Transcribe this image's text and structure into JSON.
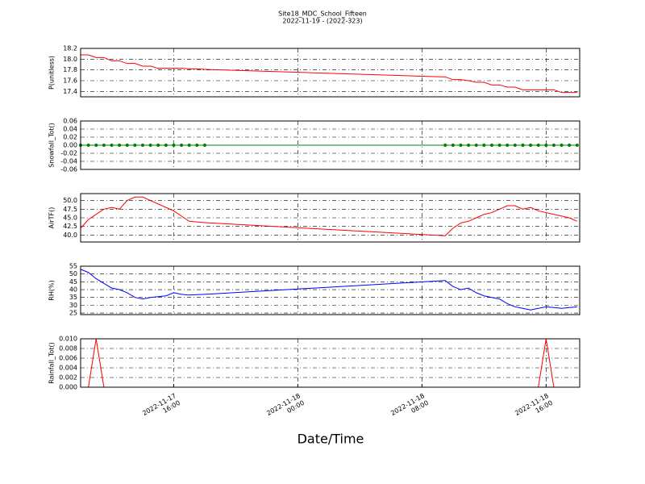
{
  "chart_data": {
    "type": "line",
    "title": "Site18_MDC_School_Fifteen",
    "subtitle": "2022-11-19 - (2022-323)",
    "xlabel": "Date/Time",
    "grid": true,
    "x": [
      "2022-11-17 10:00",
      "2022-11-17 10:30",
      "2022-11-17 11:00",
      "2022-11-17 11:30",
      "2022-11-17 12:00",
      "2022-11-17 12:30",
      "2022-11-17 13:00",
      "2022-11-17 13:30",
      "2022-11-17 14:00",
      "2022-11-17 14:30",
      "2022-11-17 15:00",
      "2022-11-17 15:30",
      "2022-11-17 16:00",
      "2022-11-17 16:30",
      "2022-11-17 17:00",
      "2022-11-17 17:30",
      "2022-11-17 18:00",
      "2022-11-18 09:30",
      "2022-11-18 10:00",
      "2022-11-18 10:30",
      "2022-11-18 11:00",
      "2022-11-18 11:30",
      "2022-11-18 12:00",
      "2022-11-18 12:30",
      "2022-11-18 13:00",
      "2022-11-18 13:30",
      "2022-11-18 14:00",
      "2022-11-18 14:30",
      "2022-11-18 15:00",
      "2022-11-18 15:30",
      "2022-11-18 16:00",
      "2022-11-18 16:30",
      "2022-11-18 17:00",
      "2022-11-18 17:30",
      "2022-11-18 18:00"
    ],
    "xlim": [
      "2022-11-17 10:00",
      "2022-11-18 18:10"
    ],
    "xticks": [
      {
        "value": "2022-11-17 16:00",
        "label": "2022-11-17\n16:00"
      },
      {
        "value": "2022-11-18 00:00",
        "label": "2022-11-18\n00:00"
      },
      {
        "value": "2022-11-18 08:00",
        "label": "2022-11-18\n08:00"
      },
      {
        "value": "2022-11-18 16:00",
        "label": "2022-11-18\n16:00"
      }
    ],
    "panels": [
      {
        "ylabel": "P(unitless)",
        "ylim": [
          17.3,
          18.2
        ],
        "yticks": [
          17.4,
          17.6,
          17.8,
          {
            "value": 18.0,
            "label": "18.0"
          },
          18.2
        ],
        "series": [
          {
            "color": "#ff0000",
            "values": [
              18.08,
              18.08,
              18.03,
              18.03,
              17.97,
              17.97,
              17.92,
              17.92,
              17.87,
              17.87,
              17.83,
              17.83,
              17.83,
              17.83,
              17.82,
              17.82,
              17.81,
              17.67,
              17.62,
              17.62,
              17.6,
              17.57,
              17.57,
              17.52,
              17.52,
              17.48,
              17.48,
              17.43,
              17.43,
              17.43,
              17.43,
              17.43,
              17.38,
              17.38,
              17.38
            ]
          }
        ]
      },
      {
        "ylabel": "Snowfall_Tot()",
        "ylim": [
          -0.06,
          0.06
        ],
        "yticks": [
          -0.06,
          -0.04,
          -0.02,
          {
            "value": 0,
            "label": "0.00"
          },
          0.02,
          0.04,
          0.06
        ],
        "series": [
          {
            "color": "#008000",
            "marker": "o",
            "values": [
              0,
              0,
              0,
              0,
              0,
              0,
              0,
              0,
              0,
              0,
              0,
              0,
              0,
              0,
              0,
              0,
              0,
              0,
              0,
              0,
              0,
              0,
              0,
              0,
              0,
              0,
              0,
              0,
              0,
              0,
              0,
              0,
              0,
              0,
              0
            ]
          }
        ]
      },
      {
        "ylabel": "AirTF()",
        "ylim": [
          38,
          52
        ],
        "yticks": [
          {
            "value": 40,
            "label": "40.0"
          },
          42.5,
          {
            "value": 45,
            "label": "45.0"
          },
          47.5,
          {
            "value": 50,
            "label": "50.0"
          }
        ],
        "series": [
          {
            "color": "#ff0000",
            "values": [
              42,
              44.5,
              46,
              47.5,
              48,
              47.5,
              50,
              51,
              51,
              50,
              49,
              48,
              47,
              45.5,
              44,
              43.8,
              43.6,
              39.8,
              42,
              43.5,
              44,
              45,
              46,
              46.5,
              47.5,
              48.5,
              48.5,
              47.5,
              48,
              47,
              46.5,
              46,
              45.5,
              45,
              44
            ]
          }
        ]
      },
      {
        "ylabel": "RH(%)",
        "ylim": [
          24,
          55
        ],
        "yticks": [
          25,
          30,
          35,
          40,
          45,
          50,
          55
        ],
        "series": [
          {
            "color": "#0000ff",
            "values": [
              53,
              51,
              47,
              44,
              41,
              40,
              38,
              35,
              34,
              35,
              35.5,
              36,
              38,
              37,
              36.5,
              36.8,
              37,
              45.8,
              42,
              40,
              41,
              38,
              36,
              35,
              34,
              31,
              29,
              28,
              27,
              28,
              29,
              28.5,
              28,
              28.5,
              29
            ]
          }
        ]
      },
      {
        "ylabel": "Rainfall_Tot()",
        "ylim": [
          0,
          0.01
        ],
        "yticks": [
          {
            "value": 0,
            "label": "0.000"
          },
          0.002,
          0.004,
          0.006,
          0.008,
          {
            "value": 0.01,
            "label": "0.010"
          }
        ],
        "series": [
          {
            "color": "#ff0000",
            "values": [
              0,
              0,
              0.01,
              0,
              0,
              0,
              0,
              0,
              0,
              0,
              0,
              0,
              0,
              0,
              0,
              0,
              0,
              0,
              0,
              0,
              0,
              0,
              0,
              0,
              0,
              0,
              0,
              0,
              0,
              0,
              0.01,
              0,
              0,
              0,
              0
            ]
          }
        ]
      }
    ]
  }
}
